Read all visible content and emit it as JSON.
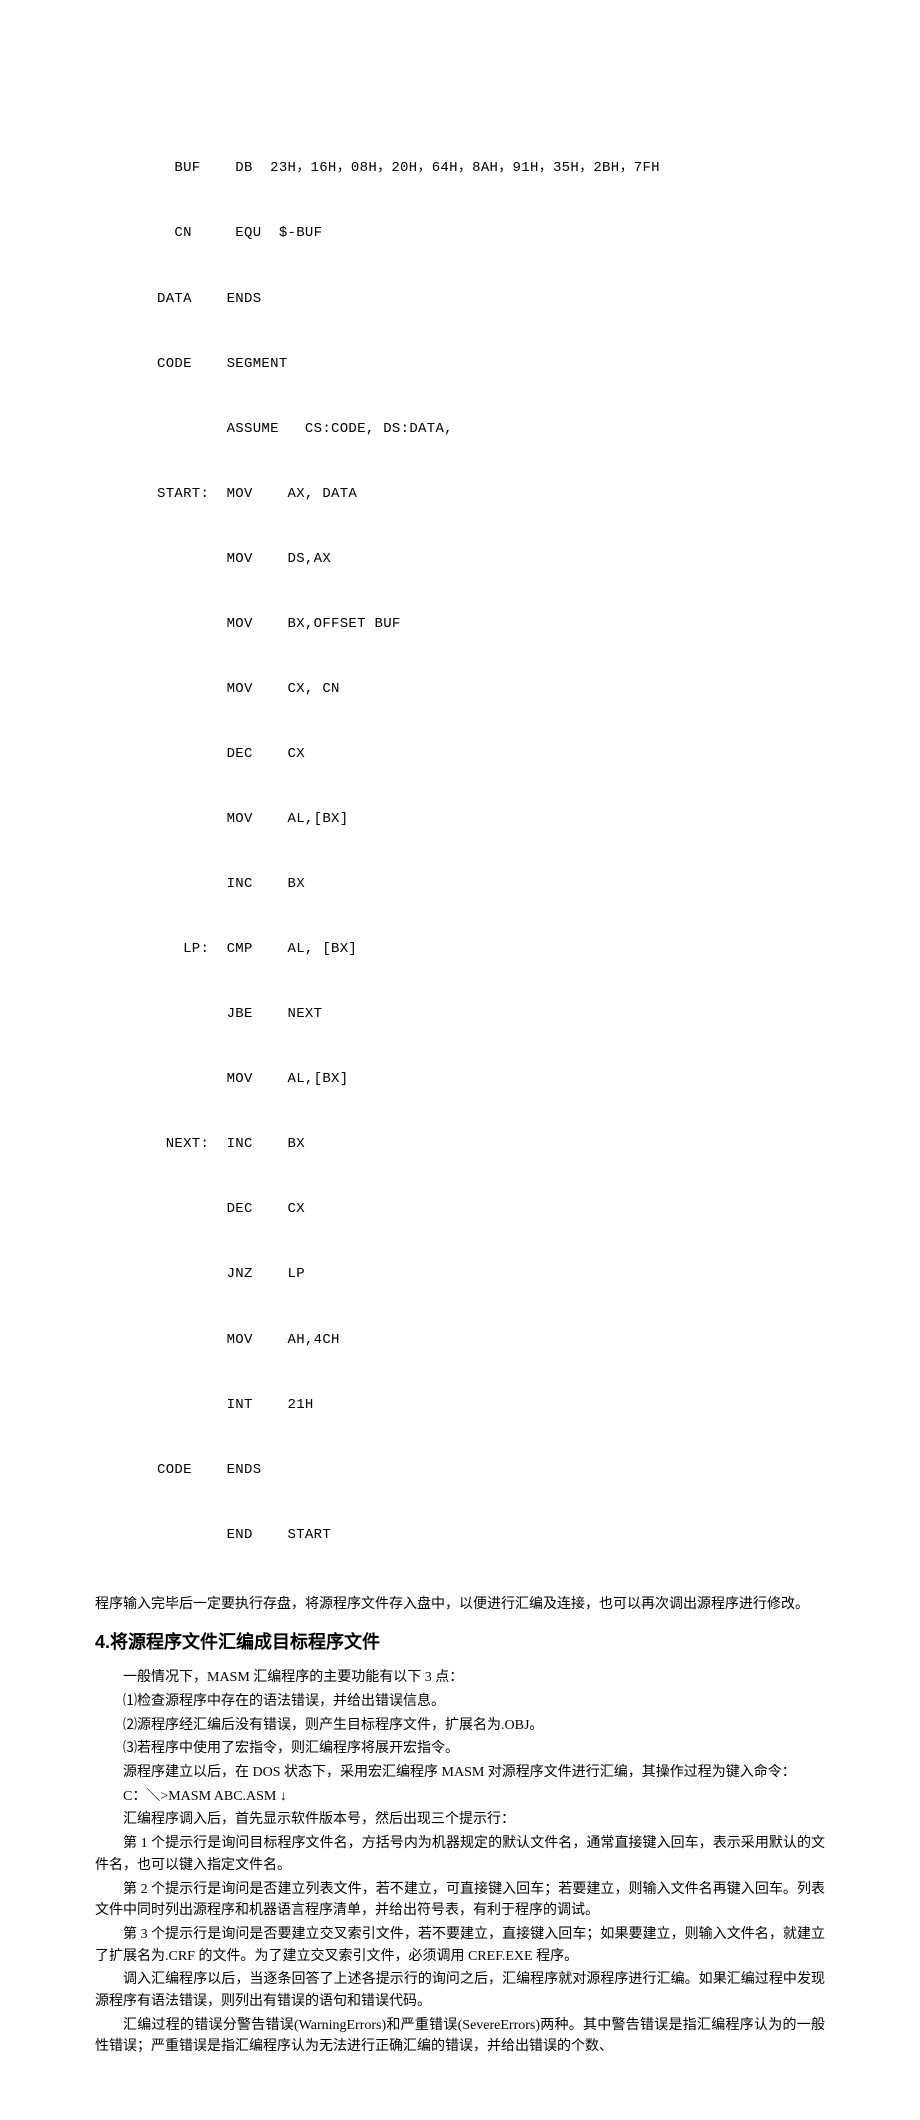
{
  "code": {
    "lines": [
      "  BUF    DB  23H，16H，08H，20H，64H，8AH，91H，35H，2BH，7FH",
      "  CN     EQU  $-BUF",
      "DATA    ENDS",
      "CODE    SEGMENT",
      "        ASSUME   CS:CODE, DS:DATA,",
      "START:  MOV    AX, DATA",
      "        MOV    DS,AX",
      "        MOV    BX,OFFSET BUF",
      "        MOV    CX, CN",
      "        DEC    CX",
      "        MOV    AL,[BX]",
      "        INC    BX",
      "   LP:  CMP    AL, [BX]",
      "        JBE    NEXT",
      "        MOV    AL,[BX]",
      " NEXT:  INC    BX",
      "        DEC    CX",
      "        JNZ    LP",
      "        MOV    AH,4CH",
      "        INT    21H",
      "CODE    ENDS",
      "        END    START"
    ]
  },
  "post_code_para": "程序输入完毕后一定要执行存盘，将源程序文件存入盘中，以便进行汇编及连接，也可以再次调出源程序进行修改。",
  "heading4": "4.将源程序文件汇编成目标程序文件",
  "p1": "一般情况下，MASM 汇编程序的主要功能有以下 3 点：",
  "p2": "⑴检查源程序中存在的语法错误，并给出错误信息。",
  "p3": "⑵源程序经汇编后没有错误，则产生目标程序文件，扩展名为.OBJ。",
  "p4": "⑶若程序中使用了宏指令，则汇编程序将展开宏指令。",
  "p5": "源程序建立以后，在 DOS 状态下，采用宏汇编程序 MASM 对源程序文件进行汇编，其操作过程为键入命令：",
  "p6": "C：＼>MASM ABC.ASM ↓",
  "p7": "汇编程序调入后，首先显示软件版本号，然后出现三个提示行：",
  "p8": "第 1 个提示行是询问目标程序文件名，方括号内为机器规定的默认文件名，通常直接键入回车，表示采用默认的文件名，也可以键入指定文件名。",
  "p9": "第 2 个提示行是询问是否建立列表文件，若不建立，可直接键入回车；若要建立，则输入文件名再键入回车。列表文件中同时列出源程序和机器语言程序清单，并给出符号表，有利于程序的调试。",
  "p10": "第 3 个提示行是询问是否要建立交叉索引文件，若不要建立，直接键入回车；如果要建立，则输入文件名，就建立了扩展名为.CRF 的文件。为了建立交叉索引文件，必须调用 CREF.EXE 程序。",
  "p11": "调入汇编程序以后，当逐条回答了上述各提示行的询问之后，汇编程序就对源程序进行汇编。如果汇编过程中发现源程序有语法错误，则列出有错误的语句和错误代码。",
  "p12": "汇编过程的错误分警告错误(WarningErrors)和严重错误(SevereErrors)两种。其中警告错误是指汇编程序认为的一般性错误；严重错误是指汇编程序认为无法进行正确汇编的错误，并给出错误的个数、"
}
